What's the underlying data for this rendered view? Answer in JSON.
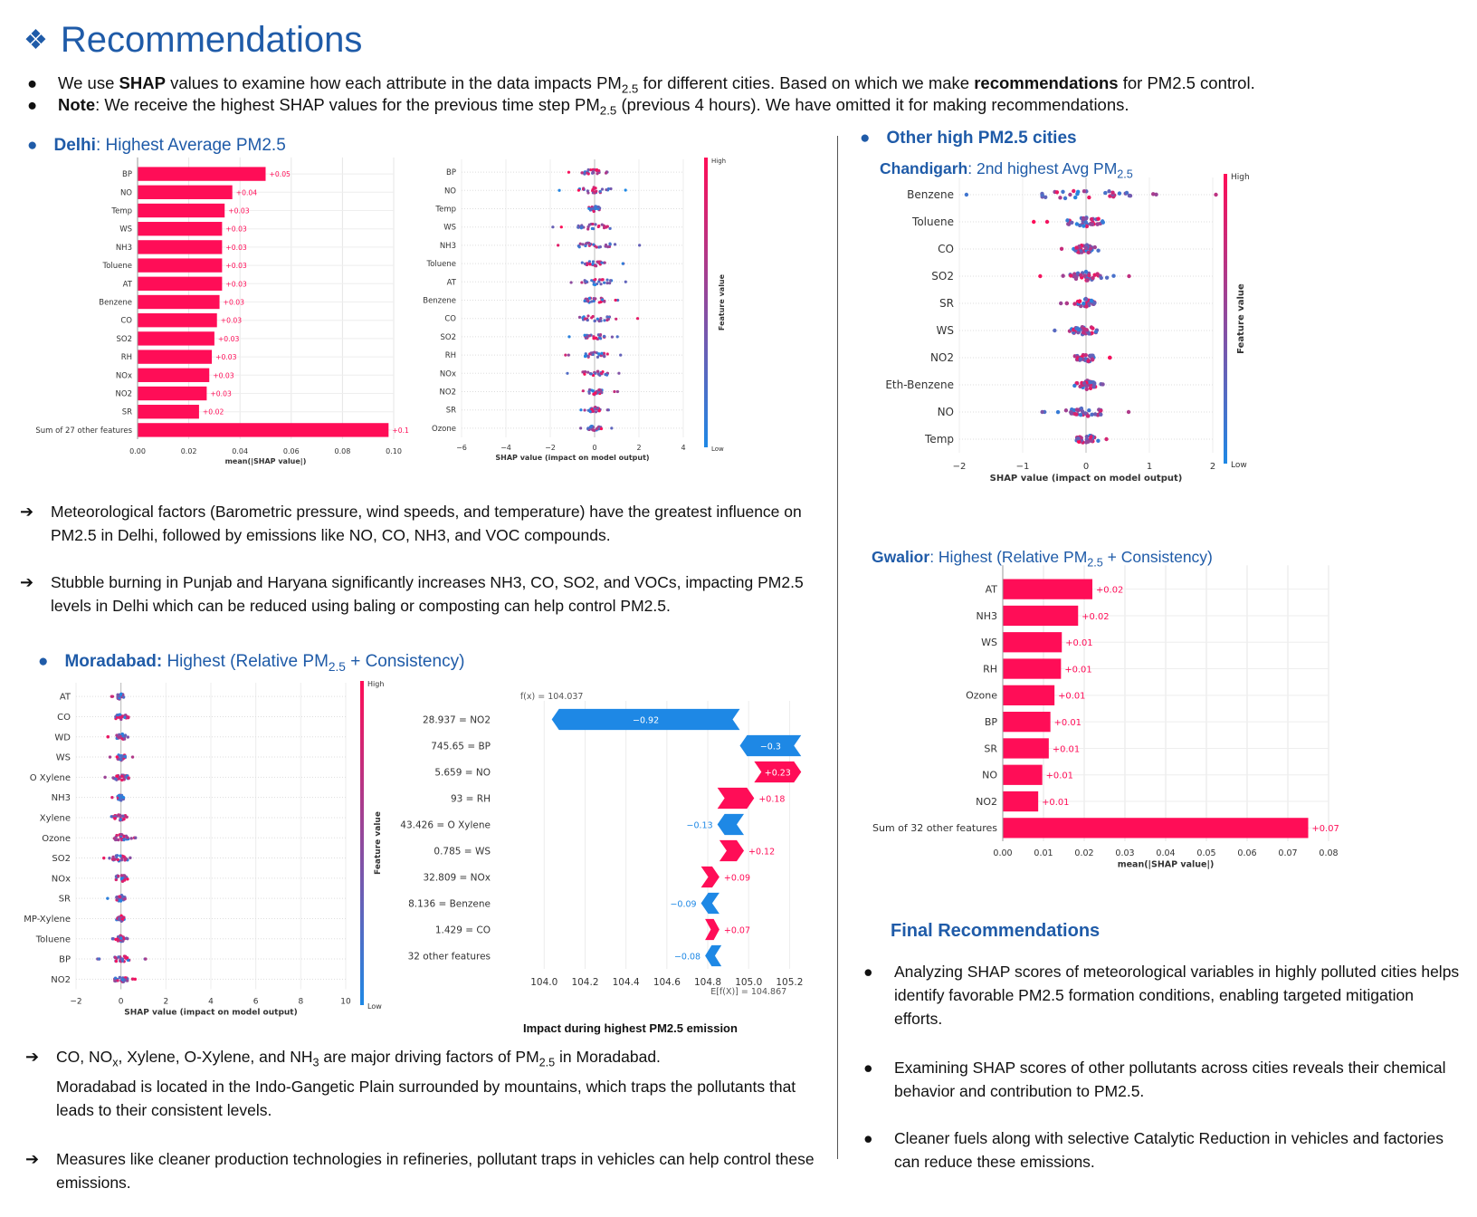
{
  "header": {
    "title": "Recommendations",
    "icon": "diamond-bullet-icon"
  },
  "intro": {
    "b1_pre": "We use ",
    "b1_bold": "SHAP",
    "b1_mid": " values to examine how each attribute in the data impacts PM",
    "b1_sub": "2.5",
    "b1_post": " for different cities. Based on which we make ",
    "b1_bold2": "recommendations",
    "b1_end": " for PM2.5 control.",
    "b2_bold": "Note",
    "b2_pre": ": We receive the highest SHAP values for the previous time step PM",
    "b2_sub": "2.5",
    "b2_post": " (previous 4 hours). We have omitted it for making recommendations."
  },
  "delhi": {
    "city": "Delhi",
    "rest": ": Highest Average PM2.5",
    "p1": "Meteorological factors (Barometric pressure, wind speeds, and temperature) have the greatest influence on PM2.5 in Delhi, followed by emissions like NO, CO, NH3, and VOC compounds.",
    "p2": "Stubble burning in Punjab and Haryana significantly increases NH3, CO, SO2, and VOCs, impacting PM2.5 levels in Delhi which can be reduced using baling or composting can help control PM2.5."
  },
  "moradabad": {
    "city": "Moradabad:",
    "rest1": " Highest (Relative PM",
    "sub": "2.5",
    "rest2": " + Consistency)",
    "p1_parts": [
      "CO, NO",
      "x",
      ", Xylene, O-Xylene, and NH",
      "3",
      " are major driving factors of PM",
      "2.5",
      " in Moradabad."
    ],
    "p1_rest": "Moradabad is located in the Indo-Gangetic Plain  surrounded by mountains, which traps the pollutants that leads to their consistent levels.",
    "p2": "Measures like cleaner production technologies in refineries, pollutant traps in vehicles can help control these emissions.",
    "waterfall_caption": "Impact  during highest PM2.5 emission"
  },
  "others": {
    "heading": "Other high PM2.5 cities"
  },
  "chandigarh": {
    "city": "Chandigarh",
    "rest": ": 2nd highest Avg PM",
    "sub": "2.5"
  },
  "gwalior": {
    "city": "Gwalior",
    "rest1": ": Highest (Relative PM",
    "sub": "2.5",
    "rest2": " + Consistency)"
  },
  "final": {
    "heading": "Final Recommendations",
    "items": [
      "Analyzing SHAP scores of meteorological variables in highly polluted cities helps identify favorable PM2.5 formation conditions, enabling targeted mitigation efforts.",
      "Examining SHAP scores of other pollutants across cities reveals their chemical behavior and contribution to PM2.5.",
      "Cleaner fuels along with selective Catalytic Reduction in vehicles and factories can reduce these emissions."
    ]
  },
  "colors": {
    "accent": "#1f5ba8",
    "pos": "#ff0d57",
    "neg": "#1e88e5"
  },
  "chart_data": [
    {
      "id": "delhi_bar",
      "type": "bar",
      "orientation": "horizontal",
      "categories": [
        "BP",
        "NO",
        "Temp",
        "WS",
        "NH3",
        "Toluene",
        "AT",
        "Benzene",
        "CO",
        "SO2",
        "RH",
        "NOx",
        "NO2",
        "SR",
        "Sum of 27 other features"
      ],
      "values": [
        0.05,
        0.037,
        0.034,
        0.033,
        0.033,
        0.033,
        0.033,
        0.032,
        0.031,
        0.03,
        0.029,
        0.028,
        0.027,
        0.024,
        0.098
      ],
      "labels": [
        "+0.05",
        "+0.04",
        "+0.03",
        "+0.03",
        "+0.03",
        "+0.03",
        "+0.03",
        "+0.03",
        "+0.03",
        "+0.03",
        "+0.03",
        "+0.03",
        "+0.03",
        "+0.02",
        "+0.1"
      ],
      "xticks": [
        "0.00",
        "0.02",
        "0.04",
        "0.06",
        "0.08",
        "0.10"
      ],
      "xlim": [
        0,
        0.1
      ],
      "xlabel": "mean(|SHAP value|)"
    },
    {
      "id": "delhi_bee",
      "type": "scatter",
      "features": [
        "BP",
        "NO",
        "Temp",
        "WS",
        "NH3",
        "Toluene",
        "AT",
        "Benzene",
        "CO",
        "SO2",
        "RH",
        "NOx",
        "NO2",
        "SR",
        "Ozone"
      ],
      "xticks": [
        "−6",
        "−4",
        "−2",
        "0",
        "2",
        "4"
      ],
      "xlim": [
        -6,
        4
      ],
      "xlabel": "SHAP value (impact on model output)",
      "colorbar": {
        "high": "High",
        "low": "Low",
        "label": "Feature value"
      }
    },
    {
      "id": "chandigarh_bee",
      "type": "scatter",
      "features": [
        "Benzene",
        "Toluene",
        "CO",
        "SO2",
        "SR",
        "WS",
        "NO2",
        "Eth-Benzene",
        "NO",
        "Temp"
      ],
      "xticks": [
        "−2",
        "−1",
        "0",
        "1",
        "2"
      ],
      "xlim": [
        -2,
        2
      ],
      "xlabel": "SHAP value (impact on model output)",
      "colorbar": {
        "high": "High",
        "low": "Low",
        "label": "Feature value"
      }
    },
    {
      "id": "gwalior_bar",
      "type": "bar",
      "orientation": "horizontal",
      "categories": [
        "AT",
        "NH3",
        "WS",
        "RH",
        "Ozone",
        "BP",
        "SR",
        "NO",
        "NO2",
        "Sum of 32 other features"
      ],
      "values": [
        0.022,
        0.0185,
        0.0145,
        0.0143,
        0.0127,
        0.0117,
        0.0113,
        0.0097,
        0.0087,
        0.075
      ],
      "labels": [
        "+0.02",
        "+0.02",
        "+0.01",
        "+0.01",
        "+0.01",
        "+0.01",
        "+0.01",
        "+0.01",
        "+0.01",
        "+0.07"
      ],
      "xticks": [
        "0.00",
        "0.01",
        "0.02",
        "0.03",
        "0.04",
        "0.05",
        "0.06",
        "0.07",
        "0.08"
      ],
      "xlim": [
        0,
        0.08
      ],
      "xlabel": "mean(|SHAP value|)"
    },
    {
      "id": "moradabad_bee",
      "type": "scatter",
      "features": [
        "AT",
        "CO",
        "WD",
        "WS",
        "O Xylene",
        "NH3",
        "Xylene",
        "Ozone",
        "SO2",
        "NOx",
        "SR",
        "MP-Xylene",
        "Toluene",
        "BP",
        "NO2"
      ],
      "xticks": [
        "−2",
        "0",
        "2",
        "4",
        "6",
        "8",
        "10"
      ],
      "xlim": [
        -2,
        10
      ],
      "xlabel": "SHAP value (impact on model output)",
      "colorbar": {
        "high": "High",
        "low": "Low",
        "label": "Feature value"
      }
    },
    {
      "id": "moradabad_waterfall",
      "type": "bar",
      "subtype": "waterfall",
      "fx": "f(x) = 104.037",
      "efx": "E[f(X)] = 104.867",
      "rows": [
        {
          "label": "28.937 = NO2",
          "value": -0.92,
          "text": "−0.92"
        },
        {
          "label": "745.65 = BP",
          "value": -0.3,
          "text": "−0.3"
        },
        {
          "label": "5.659 = NO",
          "value": 0.23,
          "text": "+0.23"
        },
        {
          "label": "93 = RH",
          "value": 0.18,
          "text": "+0.18"
        },
        {
          "label": "43.426 = O Xylene",
          "value": -0.13,
          "text": "−0.13"
        },
        {
          "label": "0.785 = WS",
          "value": 0.12,
          "text": "+0.12"
        },
        {
          "label": "32.809 = NOx",
          "value": 0.09,
          "text": "+0.09"
        },
        {
          "label": "8.136 = Benzene",
          "value": -0.09,
          "text": "−0.09"
        },
        {
          "label": "1.429 = CO",
          "value": 0.07,
          "text": "+0.07"
        },
        {
          "label": "32 other features",
          "value": -0.08,
          "text": "−0.08"
        }
      ],
      "xticks": [
        "104.0",
        "104.2",
        "104.4",
        "104.6",
        "104.8",
        "105.0",
        "105.2"
      ],
      "xlim": [
        103.95,
        105.3
      ]
    }
  ]
}
